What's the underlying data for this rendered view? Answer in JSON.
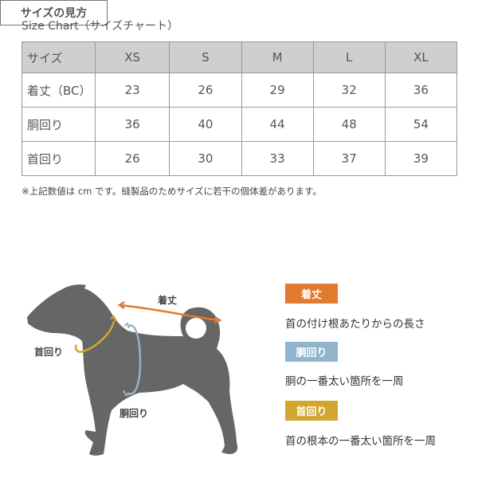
{
  "title": "Size Chart（サイズチャート）",
  "table": {
    "header": [
      "サイズ",
      "XS",
      "S",
      "M",
      "L",
      "XL"
    ],
    "rows": [
      [
        "着丈（BC）",
        "23",
        "26",
        "29",
        "32",
        "36"
      ],
      [
        "胴回り",
        "36",
        "40",
        "44",
        "48",
        "54"
      ],
      [
        "首回り",
        "26",
        "30",
        "33",
        "37",
        "39"
      ]
    ]
  },
  "note": "※上記数値は cm です。縫製品のためサイズに若干の個体差があります。",
  "howto_title": "サイズの見方",
  "diagram_labels": {
    "length": "着丈",
    "neck": "首回り",
    "chest": "胴回り"
  },
  "legend": [
    {
      "label": "着丈",
      "desc": "首の付け根あたりからの長さ",
      "color": "#e07a2f"
    },
    {
      "label": "胴回り",
      "desc": "胴の一番太い箇所を一周",
      "color": "#8fb4cb"
    },
    {
      "label": "首回り",
      "desc": "首の根本の一番太い箇所を一周",
      "color": "#d3a62f"
    }
  ]
}
